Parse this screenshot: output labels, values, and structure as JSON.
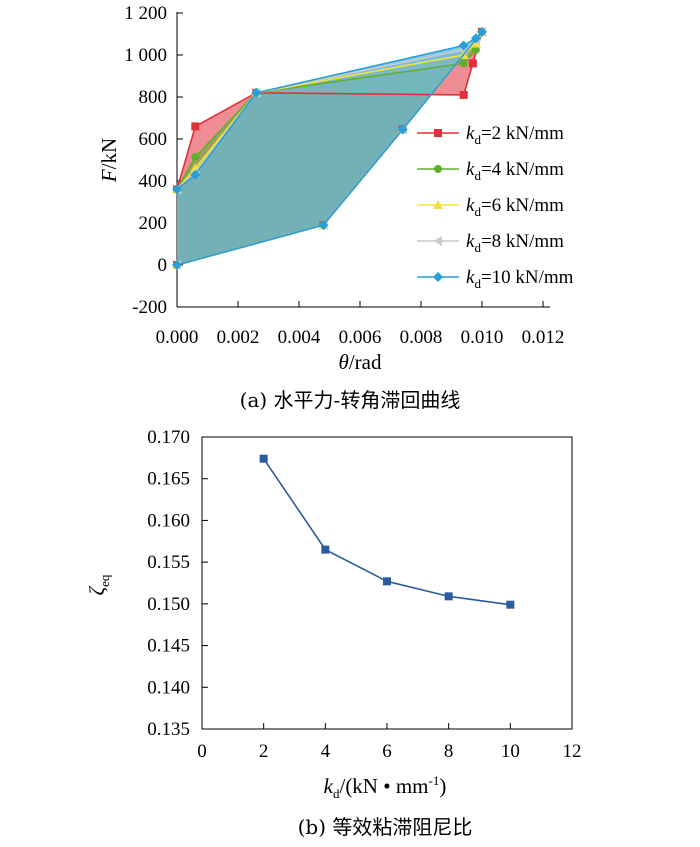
{
  "chart_data": [
    {
      "type": "line",
      "caption": "(a) 水平力-转角滞回曲线",
      "xlabel": {
        "symbol": "θ",
        "unit": "/rad"
      },
      "ylabel": {
        "symbol": "F",
        "unit": "/kN"
      },
      "xlim": [
        0,
        0.012
      ],
      "ylim": [
        -200,
        1200
      ],
      "xticks": [
        "0.000",
        "0.002",
        "0.004",
        "0.006",
        "0.008",
        "0.010",
        "0.012"
      ],
      "yticks": [
        "-200",
        "0",
        "200",
        "400",
        "600",
        "800",
        "1 000",
        "1 200"
      ],
      "legend_position": "right",
      "series": [
        {
          "name": "kd=2 kN/mm",
          "label": {
            "sym": "k",
            "sub": "d",
            "rest": "=2 kN/mm"
          },
          "color": "#e0303a",
          "marker": "square",
          "x": [
            0.0,
            0.0006,
            0.0026,
            0.0094,
            0.0097,
            0.01,
            0.0074,
            0.0048,
            0.0
          ],
          "y": [
            360,
            660,
            820,
            810,
            960,
            1110,
            645,
            190,
            0
          ]
        },
        {
          "name": "kd=4 kN/mm",
          "label": {
            "sym": "k",
            "sub": "d",
            "rest": "=4 kN/mm"
          },
          "color": "#5fb030",
          "marker": "circle",
          "x": [
            0.0,
            0.0006,
            0.0026,
            0.0094,
            0.0098,
            0.01,
            0.0074,
            0.0048,
            0.0
          ],
          "y": [
            360,
            515,
            820,
            960,
            1025,
            1110,
            645,
            190,
            0
          ]
        },
        {
          "name": "kd=6 kN/mm",
          "label": {
            "sym": "k",
            "sub": "d",
            "rest": "=6 kN/mm"
          },
          "color": "#f2e23a",
          "marker": "triangle",
          "x": [
            0.0,
            0.0006,
            0.0026,
            0.0094,
            0.0098,
            0.01,
            0.0074,
            0.0048,
            0.0
          ],
          "y": [
            360,
            460,
            820,
            1000,
            1055,
            1110,
            645,
            190,
            0
          ]
        },
        {
          "name": "kd=8 kN/mm",
          "label": {
            "sym": "k",
            "sub": "d",
            "rest": "=8 kN/mm"
          },
          "color": "#cccccc",
          "marker": "triangle-left",
          "x": [
            0.0,
            0.0006,
            0.0026,
            0.0094,
            0.0098,
            0.01,
            0.0074,
            0.0048,
            0.0
          ],
          "y": [
            360,
            440,
            820,
            1025,
            1070,
            1110,
            645,
            190,
            0
          ]
        },
        {
          "name": "kd=10 kN/mm",
          "label": {
            "sym": "k",
            "sub": "d",
            "rest": "=10 kN/mm"
          },
          "color": "#2a9fd6",
          "marker": "diamond",
          "x": [
            0.0,
            0.0006,
            0.0026,
            0.0094,
            0.0098,
            0.01,
            0.0074,
            0.0048,
            0.0
          ],
          "y": [
            360,
            430,
            820,
            1045,
            1080,
            1110,
            645,
            190,
            0
          ]
        }
      ]
    },
    {
      "type": "line",
      "caption": "(b) 等效粘滞阻尼比",
      "xlabel": {
        "sym": "k",
        "sub": "d",
        "unit": "/(kN • mm",
        "sup": "-1",
        "close": ")"
      },
      "ylabel": {
        "sym": "ζ",
        "sub": "eq"
      },
      "xlim": [
        0,
        12
      ],
      "ylim": [
        0.135,
        0.17
      ],
      "xticks": [
        "0",
        "2",
        "4",
        "6",
        "8",
        "10",
        "12"
      ],
      "yticks": [
        "0.135",
        "0.140",
        "0.145",
        "0.150",
        "0.155",
        "0.160",
        "0.165",
        "0.170"
      ],
      "series": [
        {
          "color": "#2a5d9f",
          "marker": "square",
          "x": [
            2,
            4,
            6,
            8,
            10
          ],
          "y": [
            0.1674,
            0.1565,
            0.1527,
            0.1509,
            0.1499
          ]
        }
      ]
    }
  ]
}
